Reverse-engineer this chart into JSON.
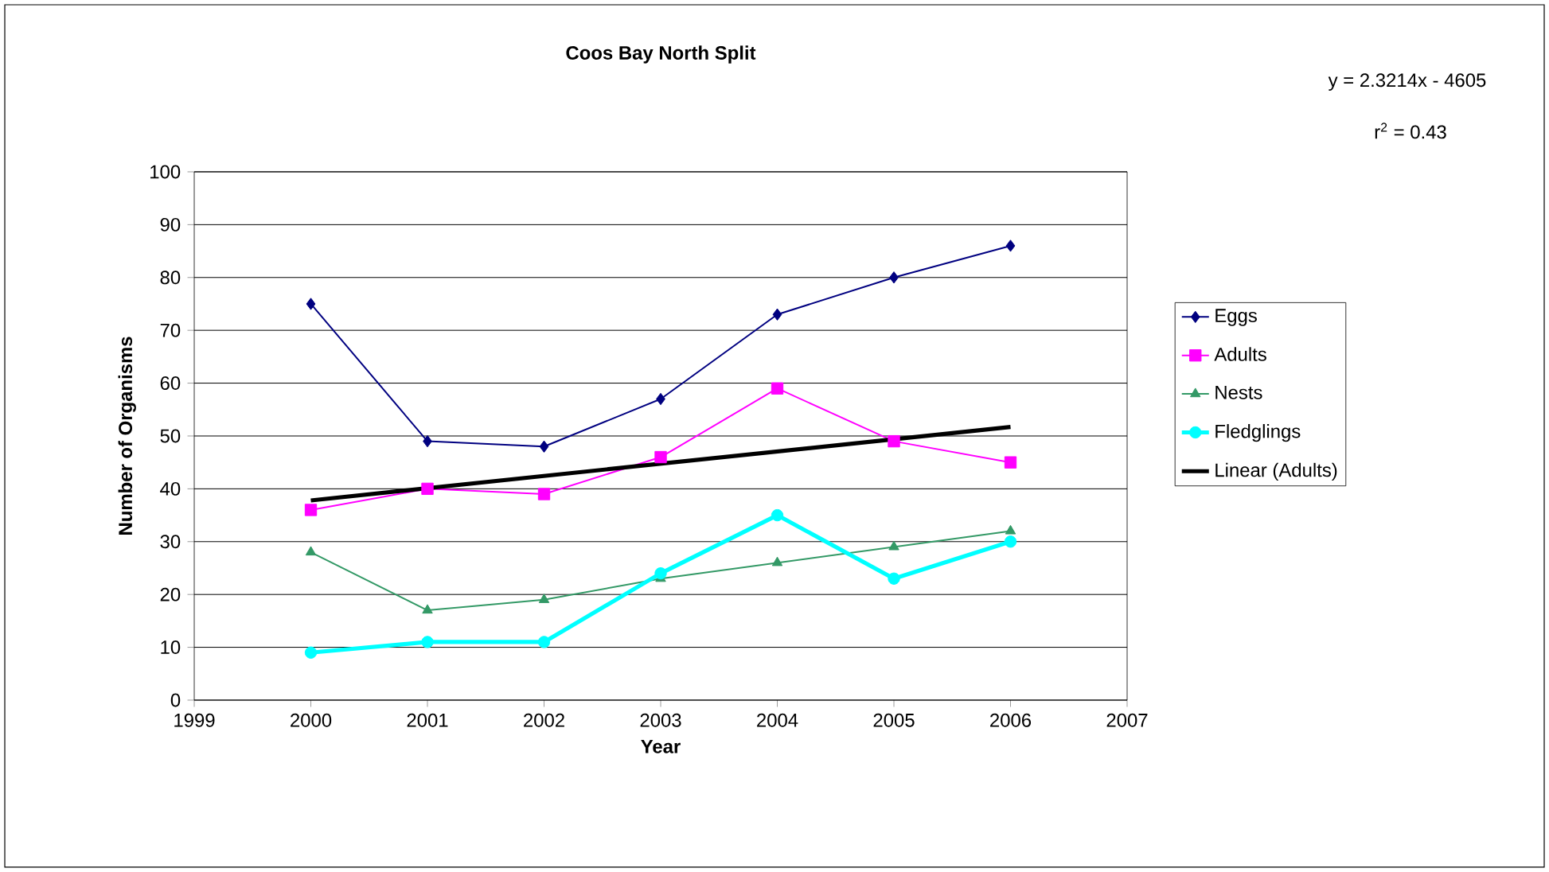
{
  "chart_data": {
    "type": "line",
    "title": "Coos Bay North Split",
    "xlabel": "Year",
    "ylabel": "Number of Organisms",
    "x": [
      2000,
      2001,
      2002,
      2003,
      2004,
      2005,
      2006
    ],
    "series": [
      {
        "name": "Eggs",
        "color": "#000080",
        "marker": "diamond",
        "values": [
          75,
          49,
          48,
          57,
          73,
          80,
          86
        ]
      },
      {
        "name": "Adults",
        "color": "#ff00ff",
        "marker": "square",
        "values": [
          36,
          40,
          39,
          46,
          59,
          49,
          45
        ]
      },
      {
        "name": "Nests",
        "color": "#339966",
        "marker": "triangle",
        "values": [
          28,
          17,
          19,
          23,
          26,
          29,
          32
        ]
      },
      {
        "name": "Fledglings",
        "color": "#00ffff",
        "marker": "circle",
        "values": [
          9,
          11,
          11,
          24,
          35,
          23,
          30
        ]
      },
      {
        "name": "Linear (Adults)",
        "color": "#000000",
        "marker": "none",
        "x": [
          2000,
          2006
        ],
        "values": [
          37.8,
          51.7
        ]
      }
    ],
    "xlim": [
      1999,
      2007
    ],
    "xticks": [
      1999,
      2000,
      2001,
      2002,
      2003,
      2004,
      2005,
      2006,
      2007
    ],
    "ylim": [
      0,
      100
    ],
    "yticks": [
      0,
      10,
      20,
      30,
      40,
      50,
      60,
      70,
      80,
      90,
      100
    ],
    "grid": "y",
    "legend": "right",
    "annotations": [
      "y = 2.3214x - 4605",
      "r$^{2}$ = 0.43"
    ]
  }
}
